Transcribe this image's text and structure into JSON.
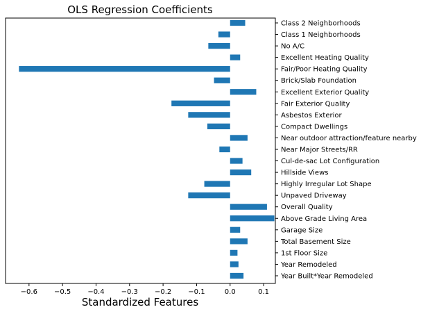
{
  "chart_data": {
    "type": "bar",
    "orientation": "horizontal",
    "title": "OLS Regression Coefficients",
    "xlabel": "Standardized Features",
    "ylabel": "",
    "y_axis_position": "right",
    "grid": false,
    "legend": "none",
    "xlim": [
      -0.67,
      0.135
    ],
    "xticks": [
      -0.6,
      -0.5,
      -0.4,
      -0.3,
      -0.2,
      -0.1,
      0.0,
      0.1
    ],
    "xtick_labels": [
      "−0.6",
      "−0.5",
      "−0.4",
      "−0.3",
      "−0.2",
      "−0.1",
      "0.0",
      "0.1"
    ],
    "bar_color": "#1f77b4",
    "categories": [
      "Class 2 Neighborhoods",
      "Class 1 Neighborhoods",
      "No A/C",
      "Excellent Heating Quality",
      "Fair/Poor Heating Quality",
      "Brick/Slab Foundation",
      "Excellent Exterior Quality",
      "Fair Exterior Quality",
      "Asbestos Exterior",
      "Compact Dwellings",
      "Near outdoor attraction/feature nearby",
      "Near Major Streets/RR",
      "Cul-de-sac Lot Configuration",
      "Hillside Views",
      "Highly Irregular Lot Shape",
      "Unpaved Driveway",
      "Overall Quality",
      "Above Grade Living Area",
      "Garage Size",
      "Total Basement Size",
      "1st Floor Size",
      "Year Remodeled",
      "Year Built*Year Remodeled"
    ],
    "values": [
      0.045,
      -0.035,
      -0.065,
      0.03,
      -0.63,
      -0.048,
      0.078,
      -0.175,
      -0.125,
      -0.068,
      0.052,
      -0.032,
      0.037,
      0.063,
      -0.077,
      -0.125,
      0.11,
      0.132,
      0.03,
      0.052,
      0.022,
      0.025,
      0.04
    ]
  }
}
